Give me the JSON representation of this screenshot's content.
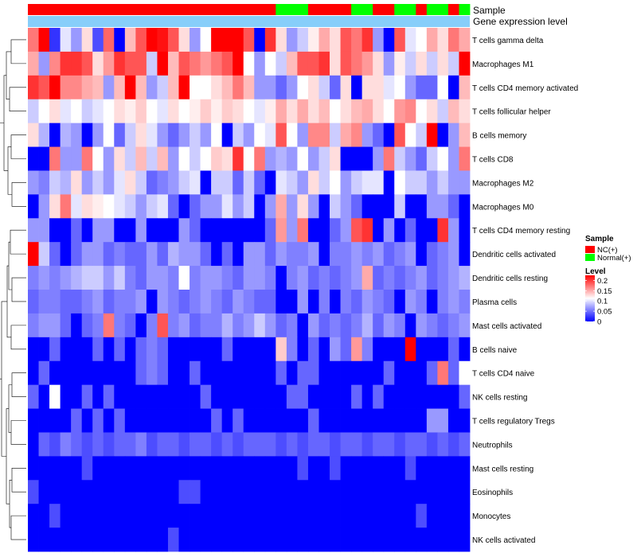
{
  "chart_data": {
    "type": "heatmap",
    "annotations": {
      "sample_label": "Sample",
      "gene_label": "Gene expression level",
      "sample_groups": [
        "NC(+)",
        "NC(+)",
        "NC(+)",
        "NC(+)",
        "NC(+)",
        "NC(+)",
        "NC(+)",
        "NC(+)",
        "NC(+)",
        "NC(+)",
        "NC(+)",
        "NC(+)",
        "NC(+)",
        "NC(+)",
        "NC(+)",
        "NC(+)",
        "NC(+)",
        "NC(+)",
        "NC(+)",
        "NC(+)",
        "NC(+)",
        "NC(+)",
        "NC(+)",
        "Normal(+)",
        "Normal(+)",
        "Normal(+)",
        "NC(+)",
        "NC(+)",
        "NC(+)",
        "NC(+)",
        "Normal(+)",
        "Normal(+)",
        "NC(+)",
        "NC(+)",
        "Normal(+)",
        "Normal(+)",
        "NC(+)",
        "Normal(+)",
        "Normal(+)",
        "NC(+)",
        "Normal(+)"
      ]
    },
    "rows": [
      "T cells gamma delta",
      "Macrophages M1",
      "T cells CD4 memory activated",
      "T cells follicular helper",
      "B cells memory",
      "T cells CD8",
      "Macrophages M2",
      "Macrophages M0",
      "T cells CD4 memory resting",
      "Dendritic cells activated",
      "Dendritic cells resting",
      "Plasma cells",
      "Mast cells activated",
      "B cells naive",
      "T cells CD4 naive",
      "NK cells resting",
      "T cells regulatory  Tregs",
      "Neutrophils",
      "Mast cells resting",
      "Eosinophils",
      "Monocytes",
      "NK cells activated"
    ],
    "values": [
      [
        0.18,
        0.25,
        0.02,
        0.09,
        0.06,
        0.12,
        0.03,
        0.19,
        0.0,
        0.14,
        0.2,
        0.25,
        0.24,
        0.2,
        0.12,
        0.06,
        0.1,
        0.25,
        0.25,
        0.25,
        0.2,
        0.0,
        0.22,
        0.12,
        0.06,
        0.08,
        0.11,
        0.15,
        0.12,
        0.2,
        0.18,
        0.22,
        0.06,
        0.0,
        0.2,
        0.09,
        0.1,
        0.15,
        0.12,
        0.18,
        0.15
      ],
      [
        0.15,
        0.06,
        0.17,
        0.22,
        0.22,
        0.2,
        0.12,
        0.16,
        0.22,
        0.2,
        0.2,
        0.08,
        0.25,
        0.14,
        0.2,
        0.18,
        0.16,
        0.18,
        0.2,
        0.25,
        0.1,
        0.06,
        0.1,
        0.08,
        0.14,
        0.2,
        0.2,
        0.22,
        0.12,
        0.2,
        0.18,
        0.16,
        0.12,
        0.06,
        0.11,
        0.08,
        0.12,
        0.08,
        0.12,
        0.08,
        0.25
      ],
      [
        0.22,
        0.2,
        0.25,
        0.17,
        0.17,
        0.15,
        0.14,
        0.06,
        0.14,
        0.25,
        0.14,
        0.06,
        0.08,
        0.14,
        0.25,
        0.1,
        0.1,
        0.12,
        0.14,
        0.18,
        0.14,
        0.06,
        0.06,
        0.04,
        0.06,
        0.1,
        0.12,
        0.08,
        0.04,
        0.12,
        0.0,
        0.12,
        0.12,
        0.09,
        0.1,
        0.06,
        0.04,
        0.04,
        0.1,
        0.0,
        0.14
      ],
      [
        0.08,
        0.1,
        0.12,
        0.09,
        0.1,
        0.08,
        0.09,
        0.1,
        0.12,
        0.11,
        0.13,
        0.1,
        0.09,
        0.12,
        0.1,
        0.11,
        0.13,
        0.11,
        0.13,
        0.12,
        0.1,
        0.09,
        0.11,
        0.15,
        0.12,
        0.15,
        0.12,
        0.14,
        0.1,
        0.12,
        0.14,
        0.15,
        0.12,
        0.1,
        0.16,
        0.17,
        0.1,
        0.12,
        0.08,
        0.14,
        0.12
      ],
      [
        0.12,
        0.07,
        0.0,
        0.07,
        0.06,
        0.0,
        0.06,
        0.1,
        0.04,
        0.08,
        0.12,
        0.09,
        0.06,
        0.04,
        0.06,
        0.08,
        0.06,
        0.1,
        0.0,
        0.08,
        0.06,
        0.1,
        0.09,
        0.2,
        0.1,
        0.06,
        0.17,
        0.17,
        0.08,
        0.15,
        0.17,
        0.06,
        0.04,
        0.0,
        0.2,
        0.1,
        0.08,
        0.25,
        0.0,
        0.06,
        0.14
      ],
      [
        0.0,
        0.0,
        0.18,
        0.06,
        0.06,
        0.18,
        0.1,
        0.06,
        0.12,
        0.08,
        0.14,
        0.08,
        0.14,
        0.06,
        0.1,
        0.08,
        0.1,
        0.13,
        0.12,
        0.22,
        0.1,
        0.18,
        0.06,
        0.07,
        0.06,
        0.1,
        0.06,
        0.08,
        0.12,
        0.0,
        0.0,
        0.0,
        0.06,
        0.18,
        0.08,
        0.06,
        0.04,
        0.08,
        0.1,
        0.06,
        0.18
      ],
      [
        0.06,
        0.05,
        0.08,
        0.07,
        0.12,
        0.06,
        0.08,
        0.06,
        0.09,
        0.12,
        0.08,
        0.04,
        0.05,
        0.06,
        0.08,
        0.09,
        0.0,
        0.08,
        0.08,
        0.04,
        0.08,
        0.04,
        0.0,
        0.09,
        0.08,
        0.06,
        0.12,
        0.08,
        0.1,
        0.06,
        0.08,
        0.09,
        0.09,
        0.0,
        0.1,
        0.08,
        0.08,
        0.06,
        0.08,
        0.06,
        0.06
      ],
      [
        0.0,
        0.06,
        0.12,
        0.18,
        0.09,
        0.12,
        0.11,
        0.1,
        0.09,
        0.08,
        0.06,
        0.08,
        0.09,
        0.04,
        0.0,
        0.04,
        0.06,
        0.06,
        0.09,
        0.06,
        0.08,
        0.0,
        0.06,
        0.15,
        0.06,
        0.12,
        0.06,
        0.0,
        0.08,
        0.06,
        0.04,
        0.0,
        0.0,
        0.0,
        0.08,
        0.0,
        0.0,
        0.06,
        0.06,
        0.04,
        0.0
      ],
      [
        0.06,
        0.06,
        0.0,
        0.0,
        0.04,
        0.0,
        0.06,
        0.06,
        0.0,
        0.0,
        0.06,
        0.0,
        0.0,
        0.0,
        0.06,
        0.04,
        0.0,
        0.0,
        0.0,
        0.0,
        0.0,
        0.0,
        0.04,
        0.16,
        0.06,
        0.18,
        0.0,
        0.0,
        0.04,
        0.06,
        0.2,
        0.22,
        0.0,
        0.06,
        0.0,
        0.04,
        0.0,
        0.0,
        0.22,
        0.06,
        0.0
      ],
      [
        0.25,
        0.08,
        0.04,
        0.0,
        0.04,
        0.06,
        0.06,
        0.04,
        0.05,
        0.04,
        0.04,
        0.06,
        0.04,
        0.07,
        0.06,
        0.06,
        0.04,
        0.0,
        0.04,
        0.0,
        0.06,
        0.06,
        0.04,
        0.06,
        0.05,
        0.05,
        0.06,
        0.0,
        0.05,
        0.05,
        0.06,
        0.05,
        0.06,
        0.04,
        0.05,
        0.06,
        0.0,
        0.04,
        0.05,
        0.06,
        0.0
      ],
      [
        0.05,
        0.06,
        0.05,
        0.06,
        0.07,
        0.08,
        0.08,
        0.06,
        0.08,
        0.05,
        0.04,
        0.06,
        0.06,
        0.05,
        0.1,
        0.05,
        0.06,
        0.06,
        0.05,
        0.04,
        0.06,
        0.06,
        0.05,
        0.0,
        0.05,
        0.06,
        0.04,
        0.05,
        0.04,
        0.05,
        0.06,
        0.15,
        0.04,
        0.05,
        0.04,
        0.05,
        0.06,
        0.04,
        0.05,
        0.06,
        0.07
      ],
      [
        0.04,
        0.05,
        0.05,
        0.04,
        0.04,
        0.05,
        0.06,
        0.04,
        0.05,
        0.05,
        0.06,
        0.0,
        0.06,
        0.05,
        0.04,
        0.05,
        0.06,
        0.05,
        0.04,
        0.06,
        0.05,
        0.04,
        0.04,
        0.0,
        0.0,
        0.06,
        0.0,
        0.05,
        0.0,
        0.05,
        0.04,
        0.06,
        0.05,
        0.04,
        0.0,
        0.06,
        0.05,
        0.0,
        0.05,
        0.06,
        0.05
      ],
      [
        0.05,
        0.06,
        0.06,
        0.04,
        0.0,
        0.04,
        0.05,
        0.18,
        0.05,
        0.04,
        0.0,
        0.05,
        0.2,
        0.05,
        0.06,
        0.04,
        0.05,
        0.05,
        0.07,
        0.05,
        0.06,
        0.08,
        0.06,
        0.04,
        0.05,
        0.0,
        0.06,
        0.04,
        0.05,
        0.04,
        0.05,
        0.07,
        0.04,
        0.06,
        0.05,
        0.0,
        0.06,
        0.05,
        0.04,
        0.05,
        0.06
      ],
      [
        0.0,
        0.0,
        0.04,
        0.0,
        0.0,
        0.0,
        0.04,
        0.0,
        0.04,
        0.0,
        0.04,
        0.05,
        0.04,
        0.0,
        0.0,
        0.0,
        0.0,
        0.0,
        0.04,
        0.0,
        0.0,
        0.0,
        0.0,
        0.13,
        0.05,
        0.0,
        0.04,
        0.0,
        0.06,
        0.04,
        0.16,
        0.05,
        0.0,
        0.0,
        0.0,
        0.25,
        0.0,
        0.0,
        0.0,
        0.04,
        0.0
      ],
      [
        0.0,
        0.04,
        0.0,
        0.0,
        0.0,
        0.0,
        0.0,
        0.0,
        0.0,
        0.0,
        0.04,
        0.05,
        0.04,
        0.0,
        0.0,
        0.04,
        0.0,
        0.0,
        0.0,
        0.0,
        0.0,
        0.0,
        0.0,
        0.04,
        0.0,
        0.04,
        0.04,
        0.0,
        0.0,
        0.0,
        0.0,
        0.0,
        0.0,
        0.04,
        0.0,
        0.0,
        0.0,
        0.04,
        0.18,
        0.04,
        0.1
      ],
      [
        0.04,
        0.0,
        0.1,
        0.0,
        0.0,
        0.04,
        0.0,
        0.04,
        0.0,
        0.0,
        0.0,
        0.0,
        0.0,
        0.0,
        0.0,
        0.0,
        0.04,
        0.0,
        0.0,
        0.0,
        0.0,
        0.0,
        0.0,
        0.0,
        0.04,
        0.04,
        0.0,
        0.0,
        0.0,
        0.0,
        0.04,
        0.0,
        0.04,
        0.0,
        0.0,
        0.0,
        0.0,
        0.0,
        0.0,
        0.0,
        0.04
      ],
      [
        0.0,
        0.0,
        0.0,
        0.0,
        0.04,
        0.0,
        0.04,
        0.0,
        0.04,
        0.0,
        0.0,
        0.0,
        0.0,
        0.0,
        0.0,
        0.0,
        0.0,
        0.04,
        0.0,
        0.04,
        0.0,
        0.0,
        0.0,
        0.0,
        0.0,
        0.0,
        0.04,
        0.0,
        0.0,
        0.0,
        0.0,
        0.0,
        0.0,
        0.0,
        0.0,
        0.0,
        0.0,
        0.06,
        0.06,
        0.0,
        0.0
      ],
      [
        0.0,
        0.04,
        0.03,
        0.05,
        0.04,
        0.03,
        0.04,
        0.03,
        0.04,
        0.04,
        0.05,
        0.03,
        0.04,
        0.04,
        0.03,
        0.04,
        0.04,
        0.03,
        0.04,
        0.03,
        0.04,
        0.04,
        0.04,
        0.03,
        0.04,
        0.03,
        0.04,
        0.04,
        0.03,
        0.04,
        0.04,
        0.03,
        0.04,
        0.04,
        0.03,
        0.04,
        0.04,
        0.03,
        0.04,
        0.03,
        0.04
      ],
      [
        0.0,
        0.0,
        0.0,
        0.0,
        0.0,
        0.03,
        0.0,
        0.0,
        0.0,
        0.0,
        0.0,
        0.0,
        0.0,
        0.0,
        0.0,
        0.0,
        0.0,
        0.0,
        0.0,
        0.0,
        0.0,
        0.0,
        0.0,
        0.0,
        0.0,
        0.03,
        0.0,
        0.0,
        0.03,
        0.0,
        0.0,
        0.0,
        0.0,
        0.0,
        0.0,
        0.03,
        0.0,
        0.0,
        0.0,
        0.0,
        0.0
      ],
      [
        0.03,
        0.0,
        0.0,
        0.0,
        0.0,
        0.0,
        0.0,
        0.0,
        0.0,
        0.0,
        0.0,
        0.0,
        0.0,
        0.0,
        0.03,
        0.03,
        0.0,
        0.0,
        0.0,
        0.0,
        0.0,
        0.0,
        0.0,
        0.0,
        0.0,
        0.0,
        0.0,
        0.0,
        0.0,
        0.0,
        0.0,
        0.0,
        0.0,
        0.0,
        0.0,
        0.0,
        0.0,
        0.0,
        0.0,
        0.0,
        0.0
      ],
      [
        0.0,
        0.0,
        0.03,
        0.0,
        0.0,
        0.0,
        0.0,
        0.0,
        0.0,
        0.0,
        0.0,
        0.0,
        0.0,
        0.0,
        0.0,
        0.0,
        0.0,
        0.0,
        0.0,
        0.0,
        0.0,
        0.0,
        0.0,
        0.0,
        0.0,
        0.0,
        0.0,
        0.0,
        0.0,
        0.0,
        0.0,
        0.0,
        0.0,
        0.0,
        0.0,
        0.0,
        0.03,
        0.0,
        0.0,
        0.0,
        0.0
      ],
      [
        0.0,
        0.0,
        0.0,
        0.0,
        0.0,
        0.0,
        0.0,
        0.0,
        0.0,
        0.0,
        0.0,
        0.0,
        0.0,
        0.03,
        0.0,
        0.0,
        0.0,
        0.0,
        0.0,
        0.0,
        0.0,
        0.0,
        0.0,
        0.0,
        0.0,
        0.0,
        0.0,
        0.0,
        0.0,
        0.0,
        0.0,
        0.0,
        0.0,
        0.0,
        0.0,
        0.0,
        0.0,
        0.0,
        0.0,
        0.0,
        0.0
      ]
    ],
    "legend": {
      "sample_title": "Sample",
      "sample_items": [
        {
          "label": "NC(+)",
          "color": "#ff0000"
        },
        {
          "label": "Normal(+)",
          "color": "#00ff00"
        }
      ],
      "level_title": "Level",
      "level_ticks": [
        {
          "label": "0.2",
          "value": 0.2
        },
        {
          "label": "0.15",
          "value": 0.15
        },
        {
          "label": "0.1",
          "value": 0.1
        },
        {
          "label": "0.05",
          "value": 0.05
        },
        {
          "label": "0",
          "value": 0
        }
      ]
    },
    "color_scale": {
      "low": "#0000ff",
      "mid": "#ffffff",
      "high": "#ff0000",
      "min": 0,
      "mid_value": 0.1,
      "max": 0.25
    },
    "gene_bar_color": "#87cefa"
  }
}
